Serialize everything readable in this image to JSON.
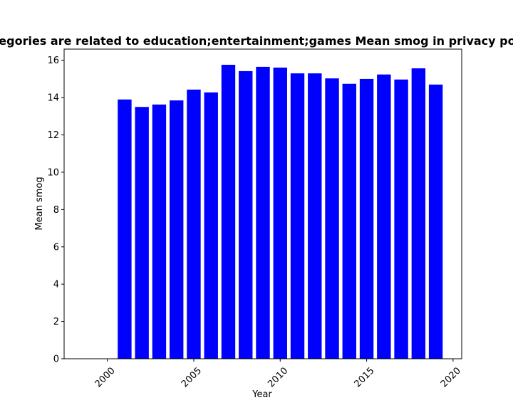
{
  "chart_data": {
    "type": "bar",
    "title": "Categories are related to education;entertainment;games Mean smog in privacy policies",
    "xlabel": "Year",
    "ylabel": "Mean smog",
    "xlim": [
      1997.5,
      2020.5
    ],
    "ylim": [
      0,
      16.6
    ],
    "xticks": [
      2000,
      2005,
      2010,
      2015,
      2020
    ],
    "yticks": [
      0,
      2,
      4,
      6,
      8,
      10,
      12,
      14,
      16
    ],
    "grid": false,
    "bar_color": "#0000ff",
    "x": [
      2001,
      2002,
      2003,
      2004,
      2005,
      2006,
      2007,
      2008,
      2009,
      2010,
      2011,
      2012,
      2013,
      2014,
      2015,
      2016,
      2017,
      2018,
      2019
    ],
    "values": [
      13.9,
      13.5,
      13.63,
      13.85,
      14.43,
      14.28,
      15.76,
      15.42,
      15.65,
      15.61,
      15.3,
      15.3,
      15.03,
      14.74,
      15.0,
      15.24,
      14.97,
      15.57,
      14.7
    ]
  }
}
